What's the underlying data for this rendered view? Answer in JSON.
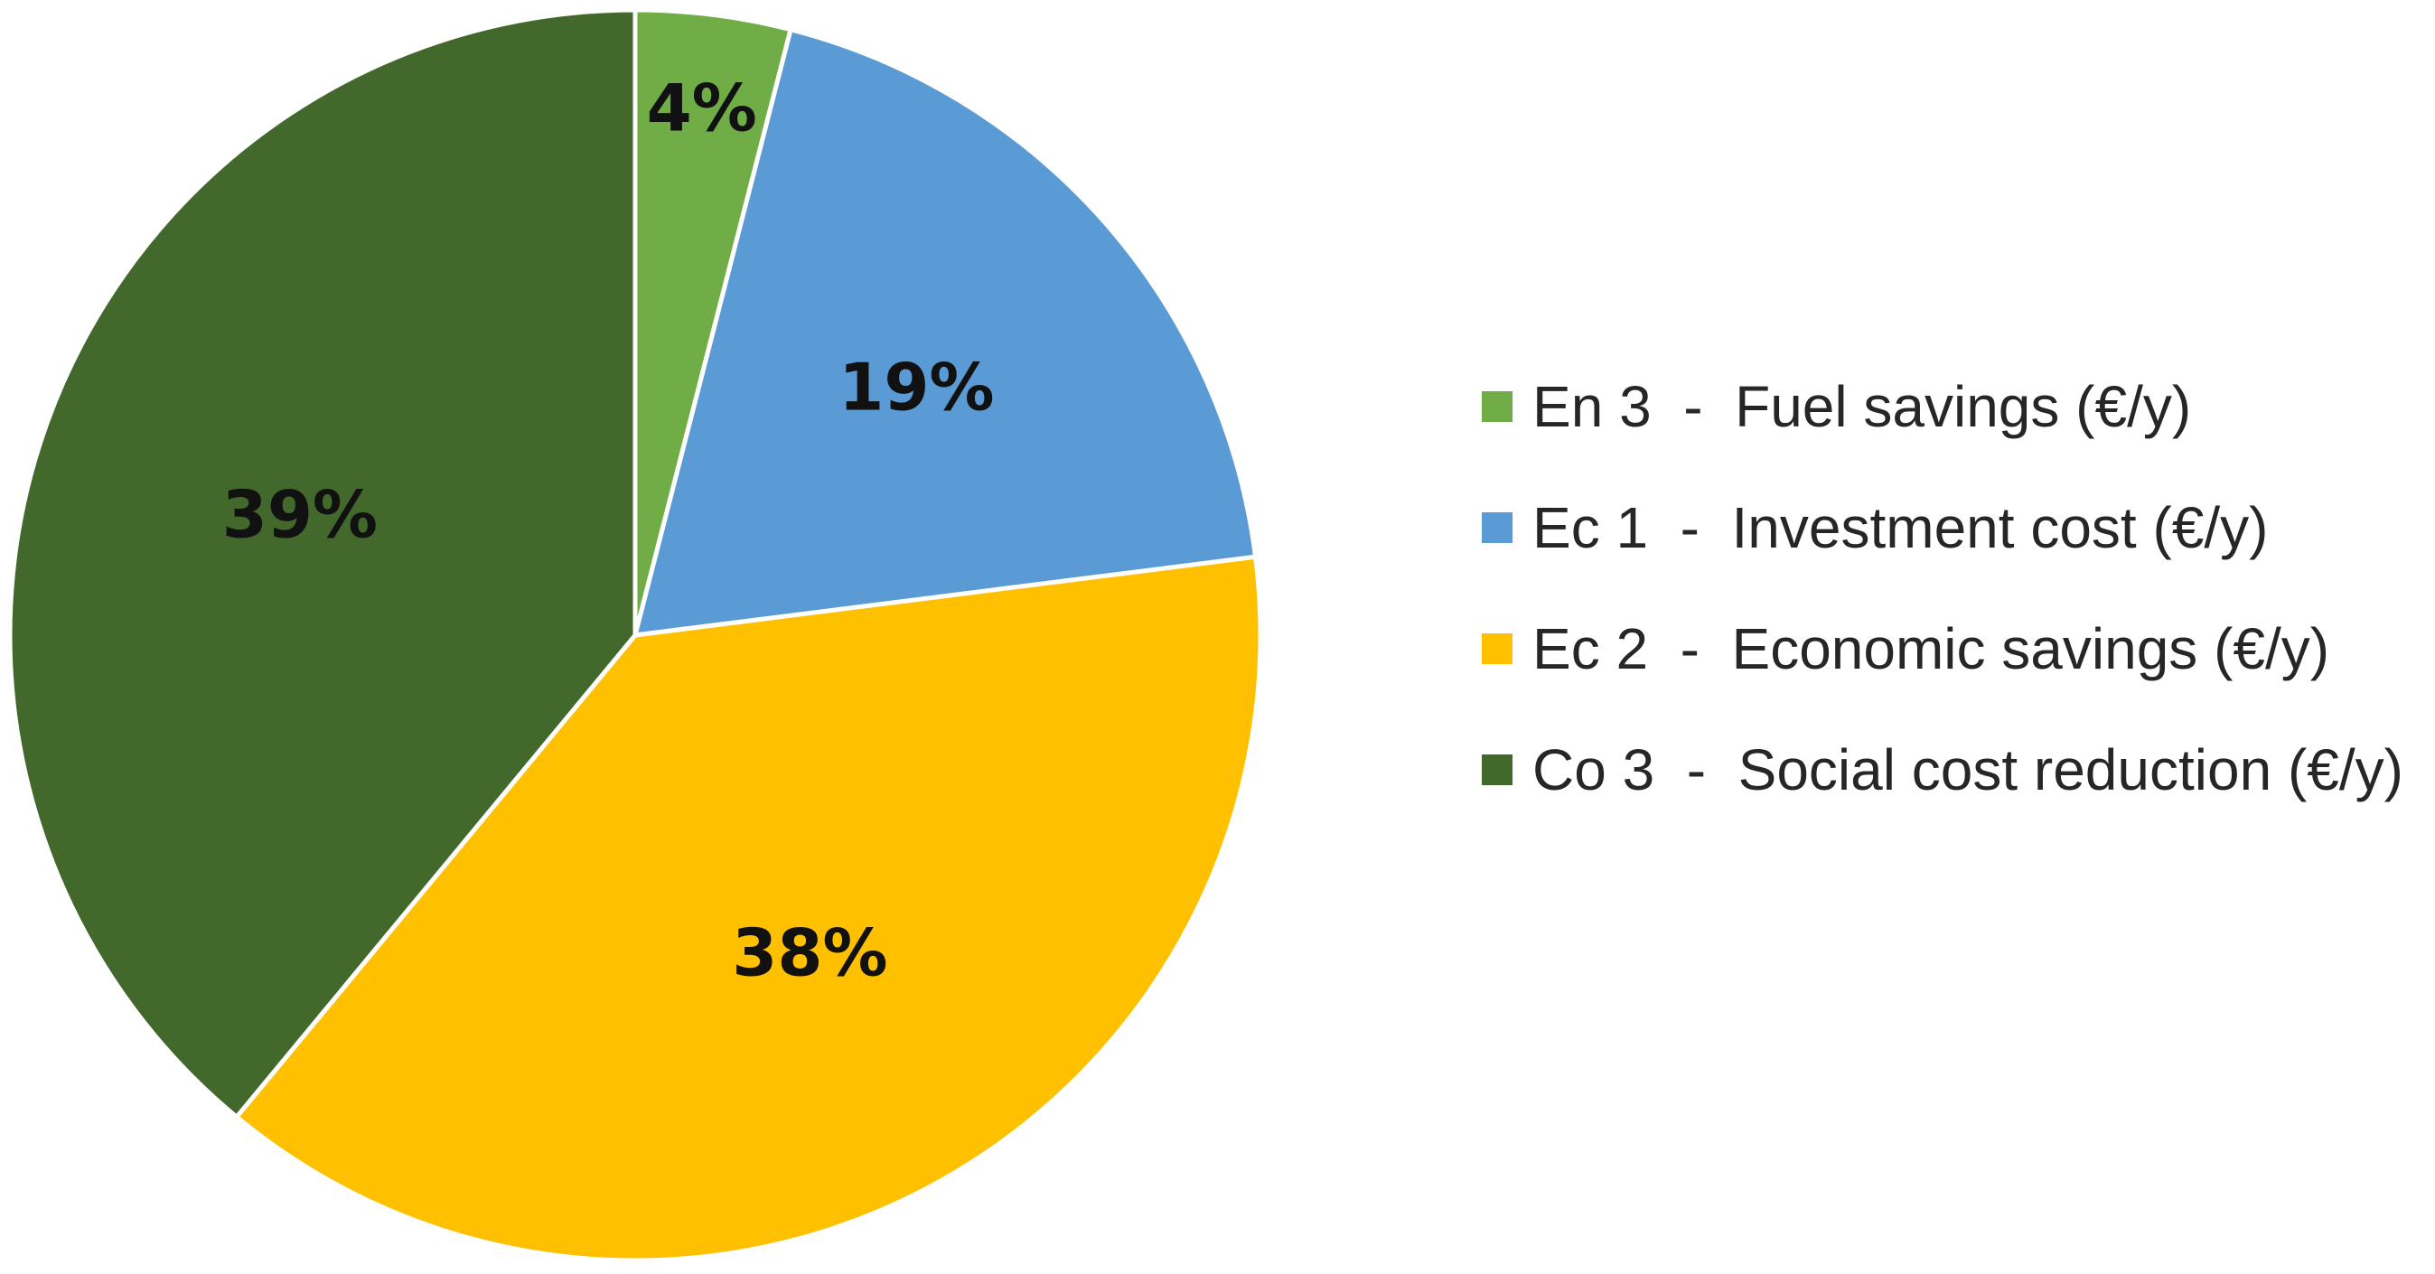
{
  "chart_data": {
    "type": "pie",
    "start_angle_deg": 0,
    "direction": "clockwise",
    "slices": [
      {
        "label": "En 3  -  Fuel savings (€/y)",
        "value": 4,
        "display": "4%",
        "color": "#70AD47"
      },
      {
        "label": "Ec 1  -  Investment cost (€/y)",
        "value": 19,
        "display": "19%",
        "color": "#5B9BD5"
      },
      {
        "label": "Ec 2  -  Economic savings (€/y)",
        "value": 38,
        "display": "38%",
        "color": "#FFC000"
      },
      {
        "label": "Co 3  -  Social cost reduction (€/y)",
        "value": 39,
        "display": "39%",
        "color": "#43682B"
      }
    ],
    "legend_position": "right"
  }
}
